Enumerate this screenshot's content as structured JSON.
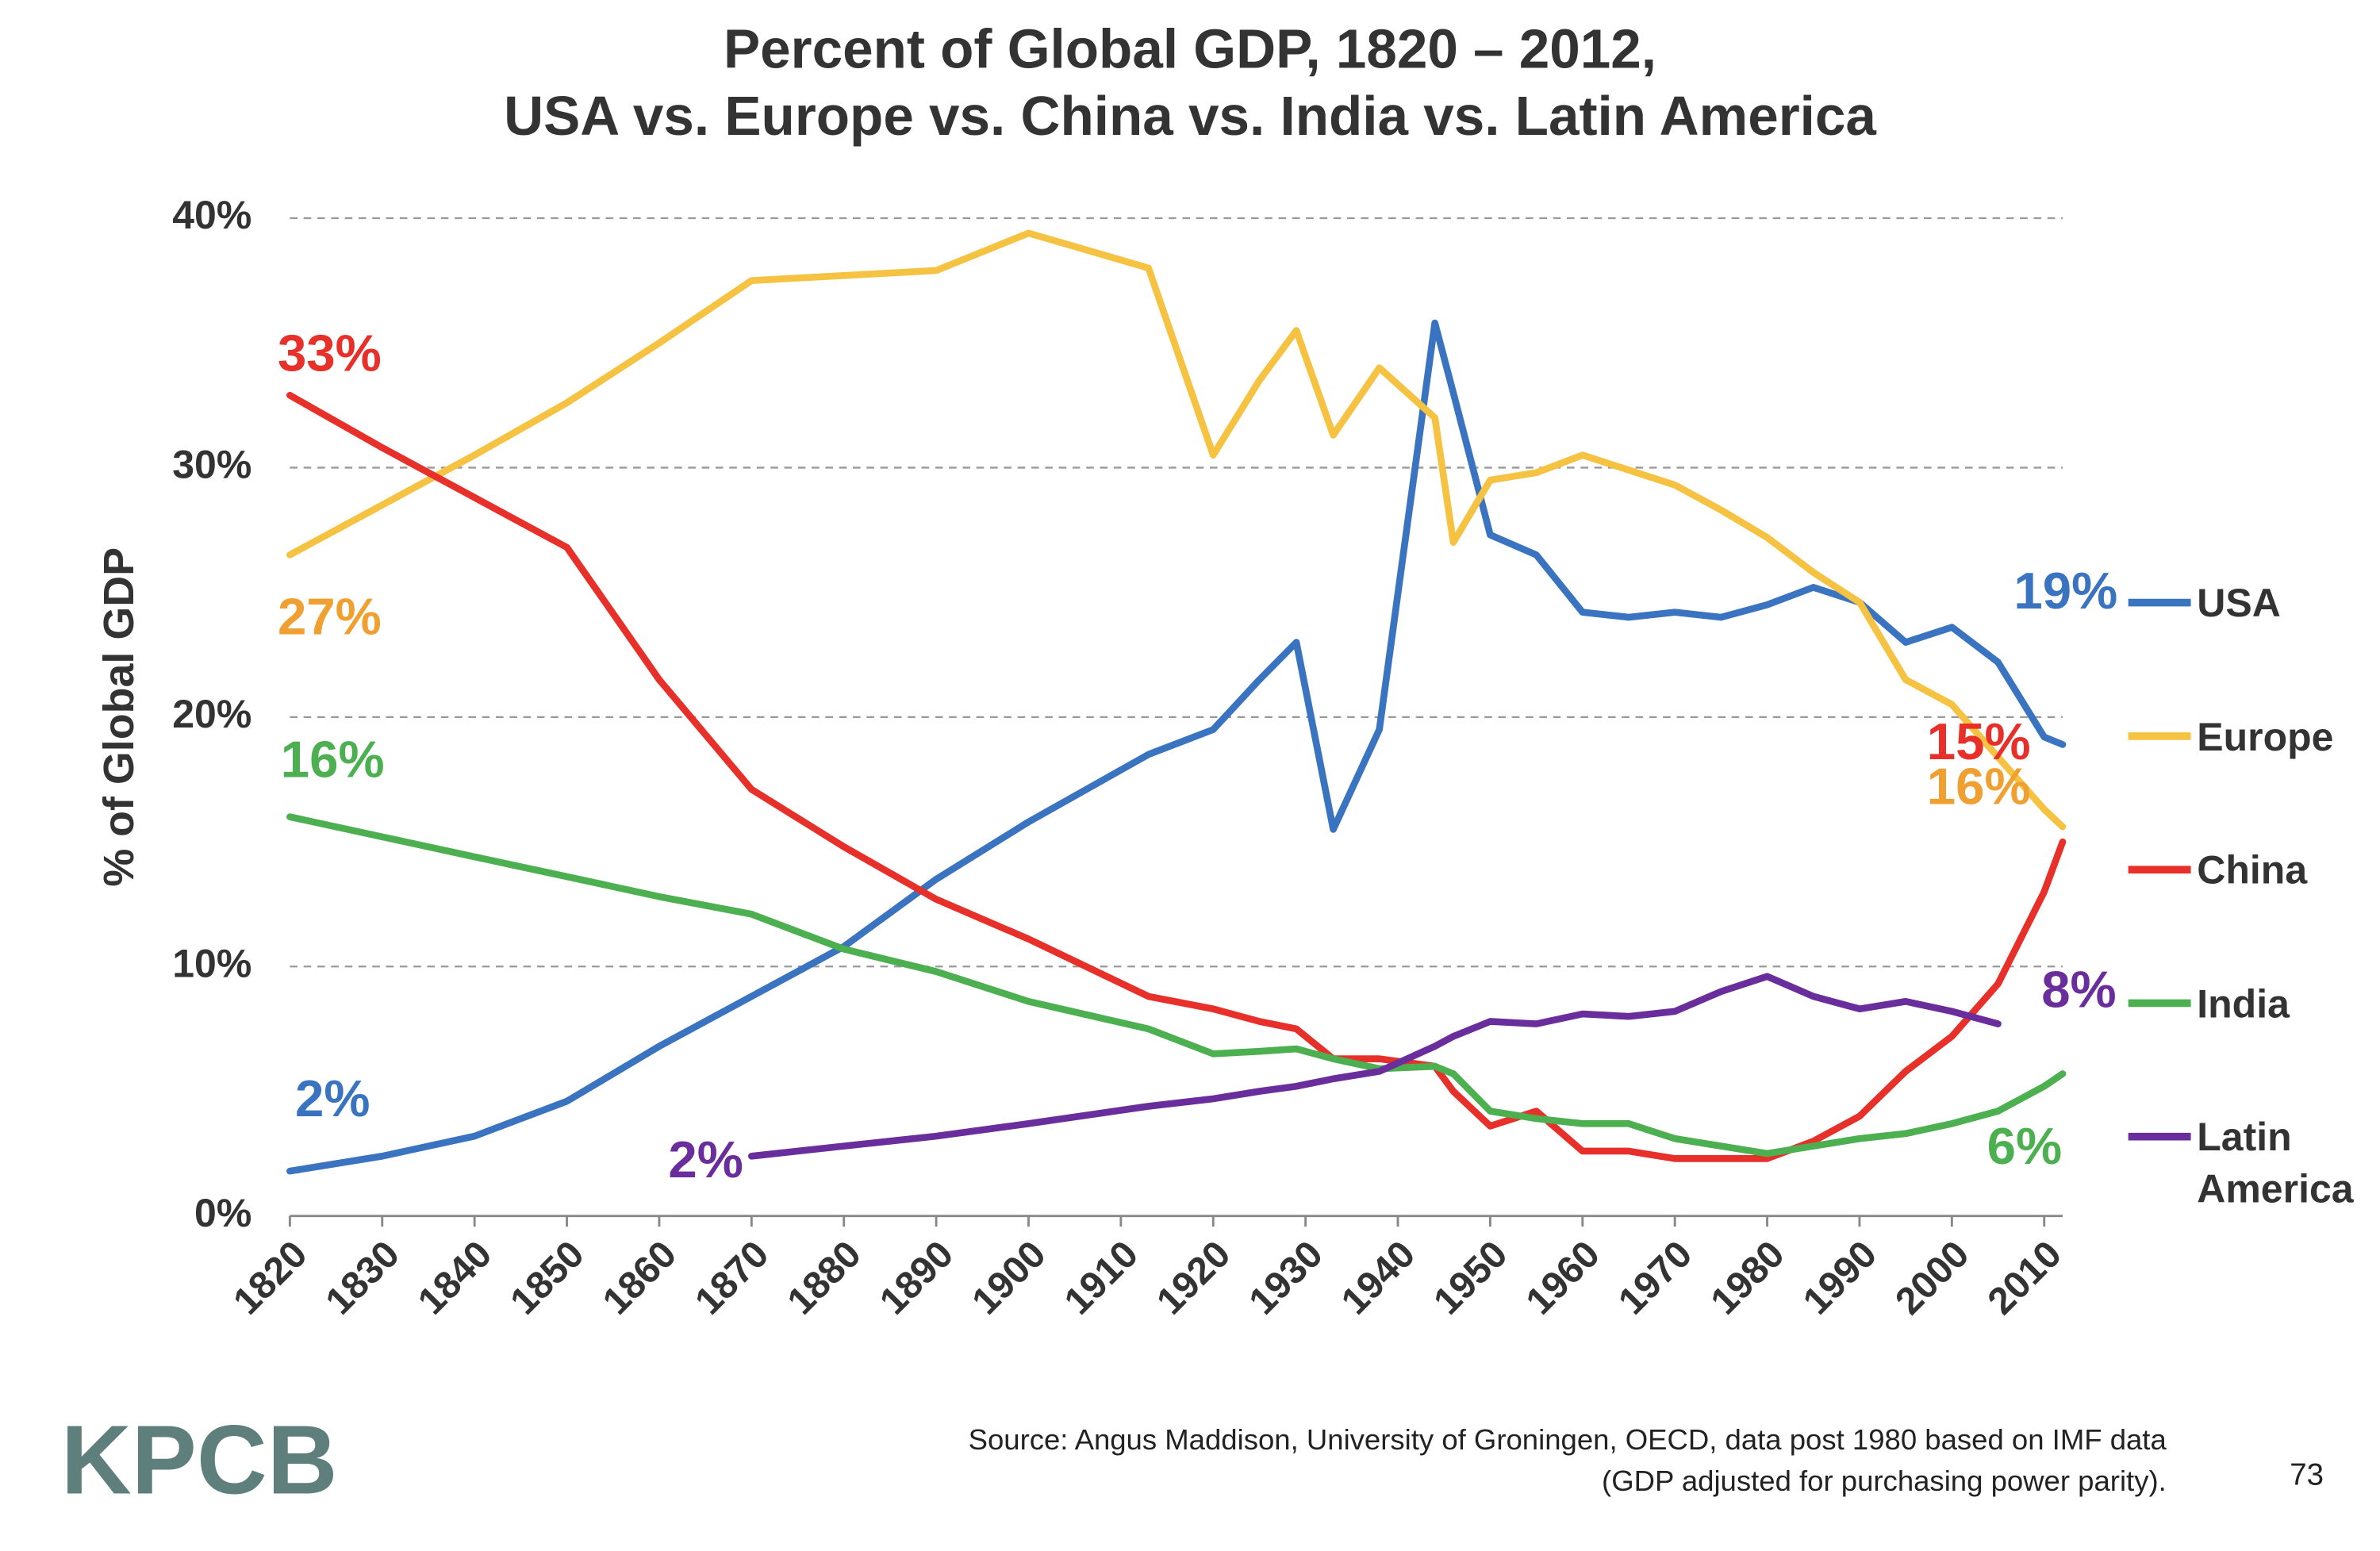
{
  "chart_data": {
    "type": "line",
    "title": "Percent of Global GDP, 1820 – 2012,",
    "subtitle": "USA vs. Europe vs. China vs. India vs. Latin America",
    "y_label": "% of Global GDP",
    "source": [
      "Source: Angus Maddison, University of Groningen, OECD, data post 1980 based on IMF data",
      "(GDP adjusted for purchasing power parity)."
    ],
    "page_number": "73",
    "logo": "KPCB",
    "x": [
      1820,
      1830,
      1840,
      1850,
      1860,
      1870,
      1880,
      1890,
      1900,
      1913,
      1920,
      1925,
      1929,
      1933,
      1938,
      1944,
      1946,
      1950,
      1955,
      1960,
      1965,
      1970,
      1975,
      1980,
      1985,
      1990,
      1995,
      2000,
      2005,
      2010,
      2012
    ],
    "xlim": [
      1820,
      2012
    ],
    "xticks": [
      1820,
      1830,
      1840,
      1850,
      1860,
      1870,
      1880,
      1890,
      1900,
      1910,
      1920,
      1930,
      1940,
      1950,
      1960,
      1970,
      1980,
      1990,
      2000,
      2010
    ],
    "ylim": [
      0,
      40
    ],
    "yticks": [
      {
        "value": 0,
        "label": "0%"
      },
      {
        "value": 10,
        "label": "10%"
      },
      {
        "value": 20,
        "label": "20%"
      },
      {
        "value": 30,
        "label": "30%"
      },
      {
        "value": 40,
        "label": "40%"
      }
    ],
    "grid": true,
    "legend": "right",
    "series": [
      {
        "name": "USA",
        "color": "#3a73c0",
        "label_color": "#3a73c0",
        "values": [
          1.8,
          2.4,
          3.2,
          4.6,
          6.8,
          8.8,
          10.8,
          13.5,
          15.8,
          18.5,
          19.5,
          21.5,
          23,
          15.5,
          19.5,
          35.8,
          33,
          27.3,
          26.5,
          24.2,
          24,
          24.2,
          24,
          24.5,
          25.2,
          24.6,
          23,
          23.6,
          22.2,
          19.2,
          18.9
        ],
        "value_labels": [
          "2%",
          null,
          null,
          null,
          null,
          null,
          null,
          null,
          null,
          null,
          null,
          null,
          null,
          null,
          null,
          null,
          null,
          null,
          null,
          null,
          null,
          null,
          null,
          null,
          null,
          null,
          null,
          null,
          null,
          null,
          "19%"
        ]
      },
      {
        "name": "Europe",
        "color": "#f5c242",
        "label_color": "#f0a030",
        "values": [
          26.5,
          28.5,
          30.5,
          32.6,
          35,
          37.5,
          37.7,
          37.9,
          39.4,
          38,
          30.5,
          33.5,
          35.5,
          31.3,
          34,
          32,
          27,
          29.5,
          29.8,
          30.5,
          29.9,
          29.3,
          28.3,
          27.2,
          25.8,
          24.6,
          21.5,
          20.5,
          18.4,
          16.3,
          15.6
        ],
        "value_labels": [
          "27%",
          null,
          null,
          null,
          null,
          null,
          null,
          null,
          null,
          null,
          null,
          null,
          null,
          null,
          null,
          null,
          null,
          null,
          null,
          null,
          null,
          null,
          null,
          null,
          null,
          null,
          null,
          null,
          null,
          null,
          "16%"
        ]
      },
      {
        "name": "China",
        "color": "#e8302a",
        "label_color": "#e8302a",
        "values": [
          32.9,
          30.8,
          28.8,
          26.8,
          21.5,
          17.1,
          14.8,
          12.7,
          11.1,
          8.8,
          8.3,
          7.8,
          7.5,
          6.3,
          6.3,
          6,
          5,
          3.6,
          4.2,
          2.6,
          2.6,
          2.3,
          2.3,
          2.3,
          3,
          4,
          5.8,
          7.2,
          9.3,
          13,
          15
        ],
        "value_labels": [
          "33%",
          null,
          null,
          null,
          null,
          null,
          null,
          null,
          null,
          null,
          null,
          null,
          null,
          null,
          null,
          null,
          null,
          null,
          null,
          null,
          null,
          null,
          null,
          null,
          null,
          null,
          null,
          null,
          null,
          null,
          "15%"
        ]
      },
      {
        "name": "India",
        "color": "#4caf50",
        "label_color": "#4caf50",
        "values": [
          16,
          15.2,
          14.4,
          13.6,
          12.8,
          12.1,
          10.7,
          9.8,
          8.6,
          7.5,
          6.5,
          6.6,
          6.7,
          6.3,
          5.9,
          6,
          5.7,
          4.2,
          3.9,
          3.7,
          3.7,
          3.1,
          2.8,
          2.5,
          2.8,
          3.1,
          3.3,
          3.7,
          4.2,
          5.2,
          5.7
        ],
        "value_labels": [
          "16%",
          null,
          null,
          null,
          null,
          null,
          null,
          null,
          null,
          null,
          null,
          null,
          null,
          null,
          null,
          null,
          null,
          null,
          null,
          null,
          null,
          null,
          null,
          null,
          null,
          null,
          null,
          null,
          null,
          null,
          "6%"
        ]
      },
      {
        "name": "Latin America",
        "color": "#6a2d9c",
        "label_color": "#6a2d9c",
        "values": [
          null,
          null,
          null,
          null,
          null,
          2.4,
          2.8,
          3.2,
          3.7,
          4.4,
          4.7,
          5,
          5.2,
          5.5,
          5.8,
          6.8,
          7.2,
          7.8,
          7.7,
          8.1,
          8,
          8.2,
          9,
          9.6,
          8.8,
          8.3,
          8.6,
          8.2,
          7.7,
          null,
          null
        ],
        "value_labels": [
          null,
          null,
          null,
          null,
          null,
          "2%",
          null,
          null,
          null,
          null,
          null,
          null,
          null,
          null,
          null,
          null,
          null,
          null,
          null,
          null,
          null,
          null,
          null,
          null,
          null,
          null,
          null,
          null,
          "8%",
          null,
          null
        ]
      }
    ]
  }
}
